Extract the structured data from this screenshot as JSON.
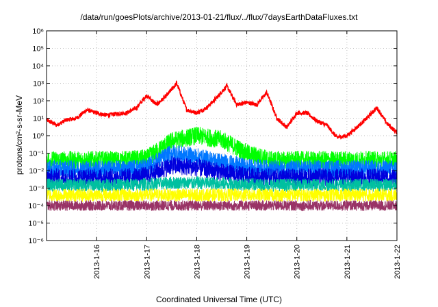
{
  "chart_data": {
    "type": "line",
    "title": "/data/run/goesPlots/archive/2013-01-21/flux/../flux/7daysEarthDataFluxes.txt",
    "xlabel": "Coordinated Universal Time (UTC)",
    "ylabel": "protons/cm²-s-sr-MeV",
    "y_scale": "log",
    "ylim": [
      1e-06,
      1000000.0
    ],
    "y_tick_labels": [
      "10⁻⁶",
      "10⁻⁵",
      "10⁻⁴",
      "10⁻³",
      "10⁻²",
      "10⁻¹",
      "10⁰",
      "10¹",
      "10²",
      "10³",
      "10⁴",
      "10⁵",
      "10⁶"
    ],
    "xlim": [
      "2013-01-15 00:00",
      "2013-01-22 00:00"
    ],
    "x_tick_labels": [
      "2013-1-16",
      "2013-1-17",
      "2013-1-18",
      "2013-1-19",
      "2013-1-20",
      "2013-1-21",
      "2013-1-22"
    ],
    "grid": true,
    "series": [
      {
        "color": "#ff0000",
        "x_days": [
          0,
          0.2,
          0.4,
          0.6,
          0.8,
          1.0,
          1.2,
          1.4,
          1.6,
          1.8,
          2.0,
          2.2,
          2.4,
          2.6,
          2.8,
          3.0,
          3.2,
          3.4,
          3.6,
          3.8,
          4.0,
          4.2,
          4.4,
          4.6,
          4.8,
          5.0,
          5.2,
          5.4,
          5.6,
          5.8,
          6.0,
          6.2,
          6.4,
          6.6,
          6.8,
          7.0
        ],
        "y": [
          8,
          4,
          8,
          10,
          30,
          20,
          15,
          18,
          20,
          40,
          200,
          60,
          200,
          1000,
          30,
          20,
          40,
          150,
          700,
          60,
          80,
          60,
          300,
          10,
          3,
          20,
          20,
          7,
          4,
          0.8,
          1,
          3,
          10,
          40,
          5,
          1.5
        ]
      },
      {
        "color": "#00ff00",
        "x_days": [
          0,
          0.5,
          1,
          1.5,
          2,
          2.5,
          3,
          3.5,
          4,
          4.5,
          5,
          5.5,
          6,
          6.5,
          7
        ],
        "y": [
          0.04,
          0.04,
          0.04,
          0.04,
          0.05,
          0.5,
          1,
          0.6,
          0.1,
          0.04,
          0.04,
          0.04,
          0.04,
          0.04,
          0.04
        ]
      },
      {
        "color": "#0077ff",
        "x_days": [
          0,
          0.5,
          1,
          1.5,
          2,
          2.5,
          3,
          3.5,
          4,
          4.5,
          5,
          5.5,
          6,
          6.5,
          7
        ],
        "y": [
          0.012,
          0.012,
          0.012,
          0.012,
          0.015,
          0.1,
          0.06,
          0.03,
          0.015,
          0.012,
          0.012,
          0.012,
          0.012,
          0.012,
          0.012
        ]
      },
      {
        "color": "#0000dd",
        "x_days": [
          0,
          0.5,
          1,
          1.5,
          2,
          2.5,
          3,
          3.5,
          4,
          4.5,
          5,
          5.5,
          6,
          6.5,
          7
        ],
        "y": [
          0.004,
          0.004,
          0.004,
          0.004,
          0.005,
          0.02,
          0.015,
          0.008,
          0.005,
          0.004,
          0.004,
          0.004,
          0.004,
          0.004,
          0.004
        ]
      },
      {
        "color": "#00c0a0",
        "x_days": [
          0,
          0.5,
          1,
          1.5,
          2,
          2.5,
          3,
          3.5,
          4,
          4.5,
          5,
          5.5,
          6,
          6.5,
          7
        ],
        "y": [
          0.0015,
          0.0015,
          0.0015,
          0.0015,
          0.0016,
          0.002,
          0.002,
          0.0018,
          0.0016,
          0.0015,
          0.0015,
          0.0015,
          0.0015,
          0.0015,
          0.0015
        ]
      },
      {
        "color": "#ffff00",
        "x_days": [
          0,
          0.5,
          1,
          1.5,
          2,
          2.5,
          3,
          3.5,
          4,
          4.5,
          5,
          5.5,
          6,
          6.5,
          7
        ],
        "y": [
          0.0004,
          0.0004,
          0.0004,
          0.0004,
          0.0004,
          0.0004,
          0.0004,
          0.0004,
          0.0004,
          0.0004,
          0.0004,
          0.0004,
          0.0004,
          0.0004,
          0.0004
        ]
      },
      {
        "color": "#993366",
        "x_days": [
          0,
          0.5,
          1,
          1.5,
          2,
          2.5,
          3,
          3.5,
          4,
          4.5,
          5,
          5.5,
          6,
          6.5,
          7
        ],
        "y": [
          0.0001,
          0.0001,
          0.0001,
          0.0001,
          0.0001,
          0.0001,
          0.0001,
          0.0001,
          0.0001,
          0.0001,
          0.0001,
          0.0001,
          0.0001,
          0.0001,
          0.0001
        ]
      }
    ]
  }
}
